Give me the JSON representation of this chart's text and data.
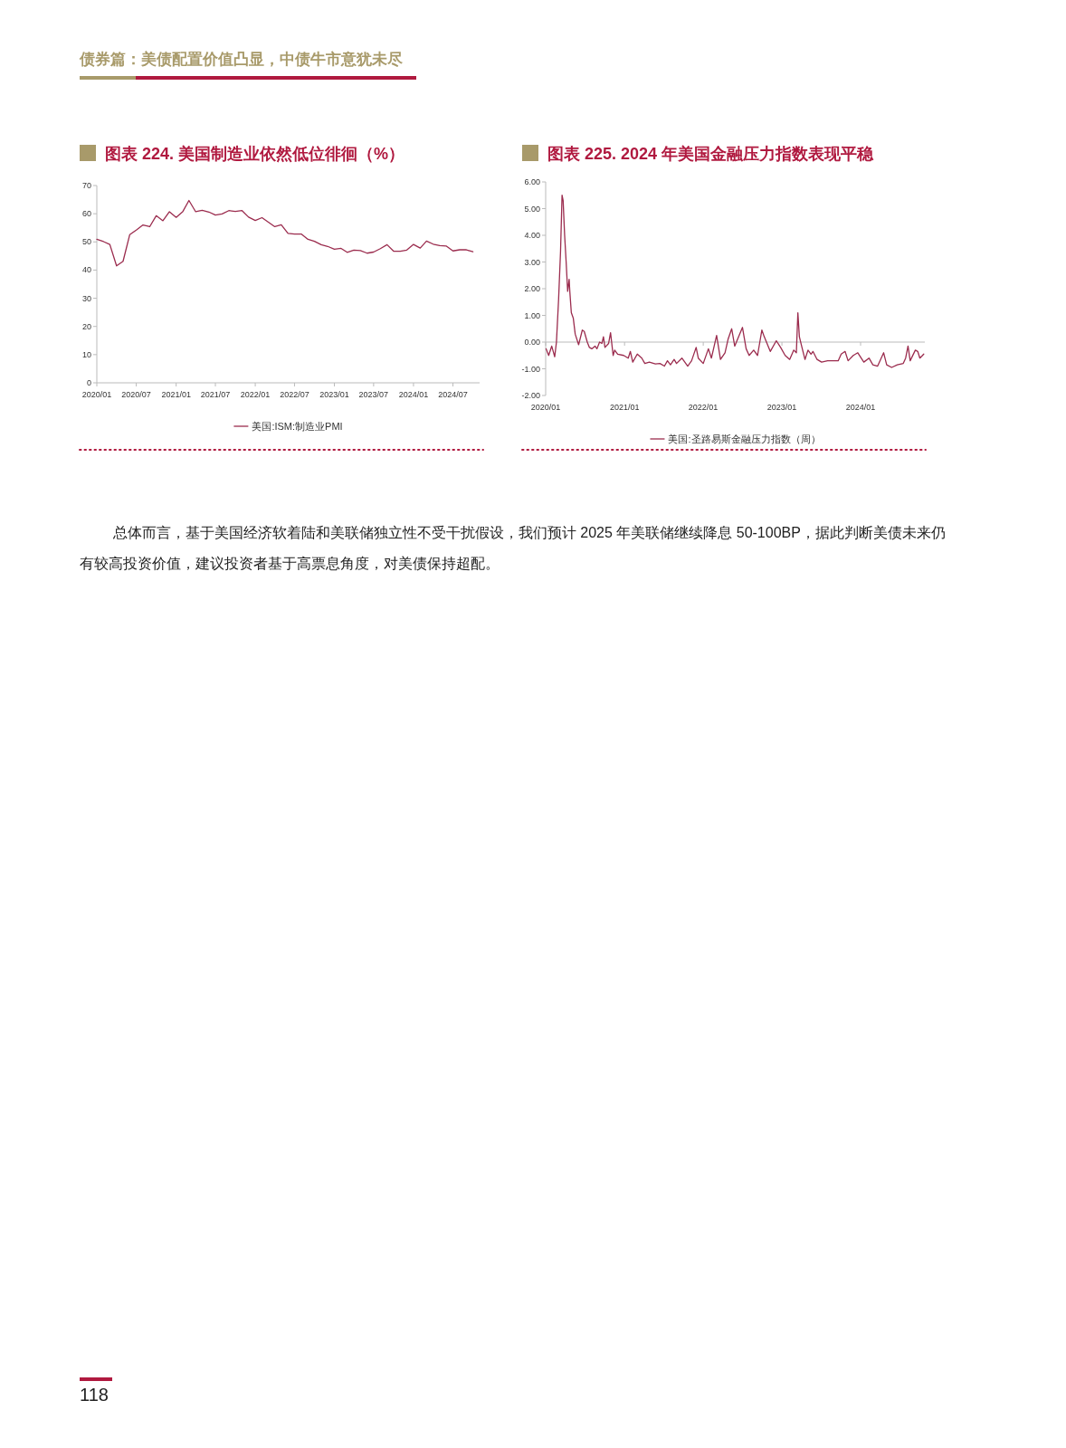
{
  "chart_data": [
    {
      "type": "line",
      "title": "图表 224. 美国制造业依然低位徘徊（%）",
      "legend": "bottom",
      "x": [
        "2020-01",
        "2020-02",
        "2020-03",
        "2020-04",
        "2020-05",
        "2020-06",
        "2020-07",
        "2020-08",
        "2020-09",
        "2020-10",
        "2020-11",
        "2020-12",
        "2021-01",
        "2021-02",
        "2021-03",
        "2021-04",
        "2021-05",
        "2021-06",
        "2021-07",
        "2021-08",
        "2021-09",
        "2021-10",
        "2021-11",
        "2021-12",
        "2022-01",
        "2022-02",
        "2022-03",
        "2022-04",
        "2022-05",
        "2022-06",
        "2022-07",
        "2022-08",
        "2022-09",
        "2022-10",
        "2022-11",
        "2022-12",
        "2023-01",
        "2023-02",
        "2023-03",
        "2023-04",
        "2023-05",
        "2023-06",
        "2023-07",
        "2023-08",
        "2023-09",
        "2023-10",
        "2023-11",
        "2023-12",
        "2024-01",
        "2024-02",
        "2024-03",
        "2024-04",
        "2024-05",
        "2024-06",
        "2024-07",
        "2024-08",
        "2024-09",
        "2024-10"
      ],
      "series": [
        {
          "name": "美国:ISM:制造业PMI",
          "color": "#9b2c4e",
          "values": [
            50.9,
            50.1,
            49.1,
            41.5,
            43.1,
            52.6,
            54.2,
            56.0,
            55.4,
            59.3,
            57.5,
            60.7,
            58.7,
            60.8,
            64.7,
            60.7,
            61.2,
            60.6,
            59.5,
            59.9,
            61.1,
            60.8,
            61.1,
            58.8,
            57.6,
            58.6,
            57.1,
            55.4,
            56.1,
            53.0,
            52.8,
            52.8,
            50.9,
            50.2,
            49.0,
            48.4,
            47.4,
            47.7,
            46.3,
            47.1,
            46.9,
            46.0,
            46.4,
            47.6,
            49.0,
            46.7,
            46.7,
            47.1,
            49.1,
            47.8,
            50.3,
            49.2,
            48.7,
            48.5,
            46.8,
            47.2,
            47.2,
            46.5
          ]
        }
      ],
      "xlim": [
        "2020-01",
        "2024-11"
      ],
      "xticks": [
        {
          "value": "2020-01",
          "label": "2020/01"
        },
        {
          "value": "2020-07",
          "label": "2020/07"
        },
        {
          "value": "2021-01",
          "label": "2021/01"
        },
        {
          "value": "2021-07",
          "label": "2021/07"
        },
        {
          "value": "2022-01",
          "label": "2022/01"
        },
        {
          "value": "2022-07",
          "label": "2022/07"
        },
        {
          "value": "2023-01",
          "label": "2023/01"
        },
        {
          "value": "2023-07",
          "label": "2023/07"
        },
        {
          "value": "2024-01",
          "label": "2024/01"
        },
        {
          "value": "2024-07",
          "label": "2024/07"
        }
      ],
      "ylim": [
        0,
        70
      ],
      "yticks": [
        0,
        10,
        20,
        30,
        40,
        50,
        60,
        70
      ]
    },
    {
      "type": "line",
      "title": "图表 225. 2024 年美国金融压力指数表现平稳",
      "legend": "bottom",
      "x": [
        "2020-01-03",
        "2020-01-15",
        "2020-01-29",
        "2020-02-12",
        "2020-02-20",
        "2020-03-01",
        "2020-03-10",
        "2020-03-17",
        "2020-03-22",
        "2020-03-29",
        "2020-04-05",
        "2020-04-12",
        "2020-04-19",
        "2020-04-22",
        "2020-04-29",
        "2020-05-08",
        "2020-05-17",
        "2020-06-02",
        "2020-06-19",
        "2020-06-28",
        "2020-07-12",
        "2020-07-22",
        "2020-08-02",
        "2020-08-17",
        "2020-08-26",
        "2020-09-07",
        "2020-09-18",
        "2020-09-25",
        "2020-10-02",
        "2020-10-19",
        "2020-10-28",
        "2020-11-09",
        "2020-11-16",
        "2020-11-30",
        "2020-12-28",
        "2021-01-18",
        "2021-01-28",
        "2021-02-08",
        "2021-03-01",
        "2021-03-22",
        "2021-04-05",
        "2021-04-26",
        "2021-05-24",
        "2021-06-14",
        "2021-07-05",
        "2021-07-19",
        "2021-08-02",
        "2021-08-19",
        "2021-08-30",
        "2021-09-24",
        "2021-10-21",
        "2021-11-08",
        "2021-11-29",
        "2021-12-09",
        "2022-01-01",
        "2022-01-25",
        "2022-02-08",
        "2022-03-04",
        "2022-03-22",
        "2022-04-12",
        "2022-04-26",
        "2022-05-13",
        "2022-05-27",
        "2022-07-02",
        "2022-07-19",
        "2022-08-02",
        "2022-08-23",
        "2022-09-10",
        "2022-09-30",
        "2022-10-11",
        "2022-11-08",
        "2022-12-06",
        "2022-12-26",
        "2023-01-16",
        "2023-02-06",
        "2023-02-25",
        "2023-03-09",
        "2023-03-16",
        "2023-03-23",
        "2023-04-04",
        "2023-04-18",
        "2023-05-02",
        "2023-05-16",
        "2023-05-25",
        "2023-06-13",
        "2023-07-04",
        "2023-08-01",
        "2023-08-29",
        "2023-09-19",
        "2023-10-03",
        "2023-10-21",
        "2023-11-04",
        "2023-11-28",
        "2023-12-19",
        "2024-01-16",
        "2024-02-09",
        "2024-02-27",
        "2024-03-20",
        "2024-04-17",
        "2024-05-01",
        "2024-05-24",
        "2024-06-19",
        "2024-07-17",
        "2024-07-28",
        "2024-08-08",
        "2024-08-18",
        "2024-09-11",
        "2024-09-22",
        "2024-10-02",
        "2024-10-20"
      ],
      "series": [
        {
          "name": "美国:圣路易斯金融压力指数（周）",
          "color": "#9b2c4e",
          "values": [
            -0.25,
            -0.5,
            -0.15,
            -0.55,
            0.0,
            1.6,
            3.4,
            5.5,
            5.3,
            4.0,
            3.0,
            1.9,
            2.35,
            1.9,
            1.1,
            0.9,
            0.3,
            -0.1,
            0.45,
            0.4,
            0.0,
            -0.2,
            -0.25,
            -0.15,
            -0.25,
            0.0,
            -0.05,
            0.2,
            -0.2,
            -0.05,
            0.35,
            -0.5,
            -0.3,
            -0.45,
            -0.5,
            -0.6,
            -0.35,
            -0.75,
            -0.45,
            -0.6,
            -0.8,
            -0.75,
            -0.82,
            -0.8,
            -0.9,
            -0.7,
            -0.85,
            -0.65,
            -0.8,
            -0.6,
            -0.9,
            -0.7,
            -0.2,
            -0.6,
            -0.8,
            -0.25,
            -0.6,
            0.25,
            -0.65,
            -0.4,
            0.1,
            0.5,
            -0.15,
            0.55,
            -0.25,
            -0.5,
            -0.3,
            -0.5,
            0.45,
            0.2,
            -0.35,
            0.05,
            -0.2,
            -0.5,
            -0.65,
            -0.3,
            -0.4,
            1.1,
            0.2,
            -0.2,
            -0.65,
            -0.3,
            -0.45,
            -0.35,
            -0.65,
            -0.75,
            -0.7,
            -0.7,
            -0.7,
            -0.45,
            -0.35,
            -0.7,
            -0.5,
            -0.4,
            -0.75,
            -0.6,
            -0.85,
            -0.9,
            -0.4,
            -0.85,
            -0.95,
            -0.85,
            -0.8,
            -0.6,
            -0.15,
            -0.7,
            -0.3,
            -0.35,
            -0.6,
            -0.45
          ]
        }
      ],
      "xlim": [
        "2020-01-01",
        "2024-10-25"
      ],
      "xticks": [
        {
          "value": "2020-01-01",
          "label": "2020/01"
        },
        {
          "value": "2021-01-01",
          "label": "2021/01"
        },
        {
          "value": "2022-01-01",
          "label": "2022/01"
        },
        {
          "value": "2023-01-01",
          "label": "2023/01"
        },
        {
          "value": "2024-01-01",
          "label": "2024/01"
        }
      ],
      "ylim": [
        -2,
        6
      ],
      "yticks": [
        {
          "value": -2,
          "label": "-2.00"
        },
        {
          "value": -1,
          "label": "-1.00"
        },
        {
          "value": 0,
          "label": "0.00"
        },
        {
          "value": 1,
          "label": "1.00"
        },
        {
          "value": 2,
          "label": "2.00"
        },
        {
          "value": 3,
          "label": "3.00"
        },
        {
          "value": 4,
          "label": "4.00"
        },
        {
          "value": 5,
          "label": "5.00"
        },
        {
          "value": 6,
          "label": "6.00"
        }
      ]
    },
    {
      "type": "other",
      "annotations": [
        "债券篇：美债配置价值凸显，中债牛市意犹未尽",
        "总体而言，基于美国经济软着陆和美联储独立性不受干扰假设，我们预计 2025 年美联储继续降息 50-100BP，据此判断美债未来仍有较高投资价值，建议投资者基于高票息角度，对美债保持超配。",
        "118"
      ]
    }
  ]
}
